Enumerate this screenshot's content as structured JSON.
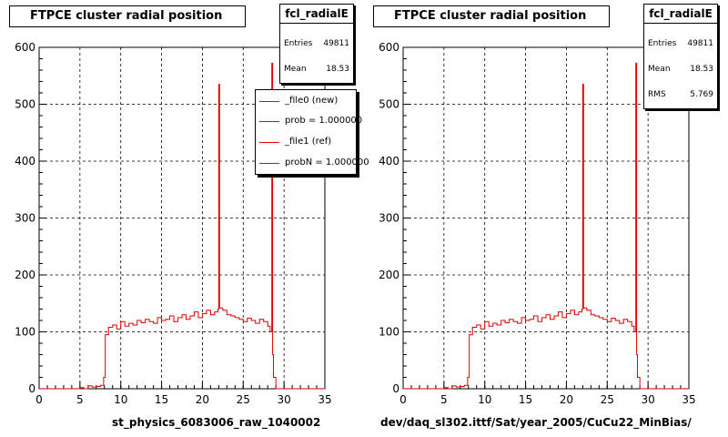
{
  "chart_data": [
    {
      "type": "line",
      "title": "FTPCE cluster radial position",
      "xlabel": "st_physics_6083006_raw_1040002",
      "ylabel": "",
      "xlim": [
        0,
        35
      ],
      "ylim": [
        0,
        600
      ],
      "xticks": [
        "0",
        "5",
        "10",
        "15",
        "20",
        "25",
        "30",
        "35"
      ],
      "yticks": [
        "0",
        "100",
        "200",
        "300",
        "400",
        "500",
        "600"
      ],
      "grid": true,
      "stats": {
        "name": "fcl_radialE",
        "rows": [
          [
            "Entries",
            "49811"
          ],
          [
            "Mean",
            "18.53"
          ]
        ]
      },
      "legend": {
        "entries": [
          "_file0 (new)",
          "prob = 1.000000",
          "_file1 (ref)",
          "probN = 1.000000"
        ]
      },
      "series": [
        {
          "color": "#e00000",
          "x": [
            0,
            0.5,
            1,
            1.5,
            2,
            2.5,
            3,
            3.5,
            4,
            4.5,
            5,
            5.5,
            6,
            6.5,
            7,
            7.5,
            7.9,
            8.1,
            8.5,
            9,
            9.5,
            10,
            10.5,
            11,
            11.5,
            12,
            12.5,
            13,
            13.5,
            14,
            14.5,
            15,
            15.5,
            16,
            16.5,
            17,
            17.5,
            18,
            18.5,
            19,
            19.5,
            20,
            20.5,
            21,
            21.5,
            21.9,
            22,
            22.1,
            22.5,
            23,
            23.5,
            24,
            24.5,
            25,
            25.5,
            26,
            26.5,
            27,
            27.5,
            28,
            28.3,
            28.5,
            28.6,
            28.7,
            29,
            29.2,
            29.5,
            30,
            30.5,
            31,
            31.5,
            32,
            32.5,
            33,
            33.5,
            34,
            34.5,
            35
          ],
          "y": [
            0,
            0,
            0,
            0,
            0,
            0,
            0,
            0,
            0,
            0,
            2,
            0,
            5,
            3,
            4,
            6,
            20,
            95,
            108,
            112,
            105,
            118,
            110,
            115,
            112,
            120,
            116,
            122,
            118,
            115,
            125,
            120,
            122,
            128,
            118,
            125,
            130,
            122,
            128,
            135,
            125,
            132,
            138,
            130,
            135,
            140,
            535,
            142,
            138,
            130,
            128,
            125,
            122,
            118,
            124,
            120,
            115,
            122,
            118,
            110,
            100,
            572,
            60,
            20,
            0,
            0,
            0,
            0,
            0,
            0,
            0,
            0,
            0,
            0,
            0,
            0,
            0,
            0
          ]
        }
      ]
    },
    {
      "type": "line",
      "title": "FTPCE cluster radial position",
      "xlabel": "dev/daq_sl302.ittf/Sat/year_2005/CuCu22_MinBias/",
      "ylabel": "",
      "xlim": [
        0,
        35
      ],
      "ylim": [
        0,
        600
      ],
      "xticks": [
        "0",
        "5",
        "10",
        "15",
        "20",
        "25",
        "30",
        "35"
      ],
      "yticks": [
        "0",
        "100",
        "200",
        "300",
        "400",
        "500",
        "600"
      ],
      "grid": true,
      "stats": {
        "name": "fcl_radialE",
        "rows": [
          [
            "Entries",
            "49811"
          ],
          [
            "Mean",
            "18.53"
          ],
          [
            "RMS",
            "5.769"
          ]
        ]
      },
      "series": [
        {
          "color": "#e00000",
          "x": [
            0,
            0.5,
            1,
            1.5,
            2,
            2.5,
            3,
            3.5,
            4,
            4.5,
            5,
            5.5,
            6,
            6.5,
            7,
            7.5,
            7.9,
            8.1,
            8.5,
            9,
            9.5,
            10,
            10.5,
            11,
            11.5,
            12,
            12.5,
            13,
            13.5,
            14,
            14.5,
            15,
            15.5,
            16,
            16.5,
            17,
            17.5,
            18,
            18.5,
            19,
            19.5,
            20,
            20.5,
            21,
            21.5,
            21.9,
            22,
            22.1,
            22.5,
            23,
            23.5,
            24,
            24.5,
            25,
            25.5,
            26,
            26.5,
            27,
            27.5,
            28,
            28.3,
            28.5,
            28.6,
            28.7,
            29,
            29.2,
            29.5,
            30,
            30.5,
            31,
            31.5,
            32,
            32.5,
            33,
            33.5,
            34,
            34.5,
            35
          ],
          "y": [
            0,
            0,
            0,
            0,
            0,
            0,
            0,
            0,
            0,
            0,
            2,
            0,
            5,
            3,
            4,
            6,
            20,
            95,
            108,
            112,
            105,
            118,
            110,
            115,
            112,
            120,
            116,
            122,
            118,
            115,
            125,
            120,
            122,
            128,
            118,
            125,
            130,
            122,
            128,
            135,
            125,
            132,
            138,
            130,
            135,
            140,
            535,
            142,
            138,
            130,
            128,
            125,
            122,
            118,
            124,
            120,
            115,
            122,
            118,
            110,
            100,
            572,
            60,
            20,
            0,
            0,
            0,
            0,
            0,
            0,
            0,
            0,
            0,
            0,
            0,
            0,
            0,
            0
          ]
        }
      ]
    }
  ]
}
